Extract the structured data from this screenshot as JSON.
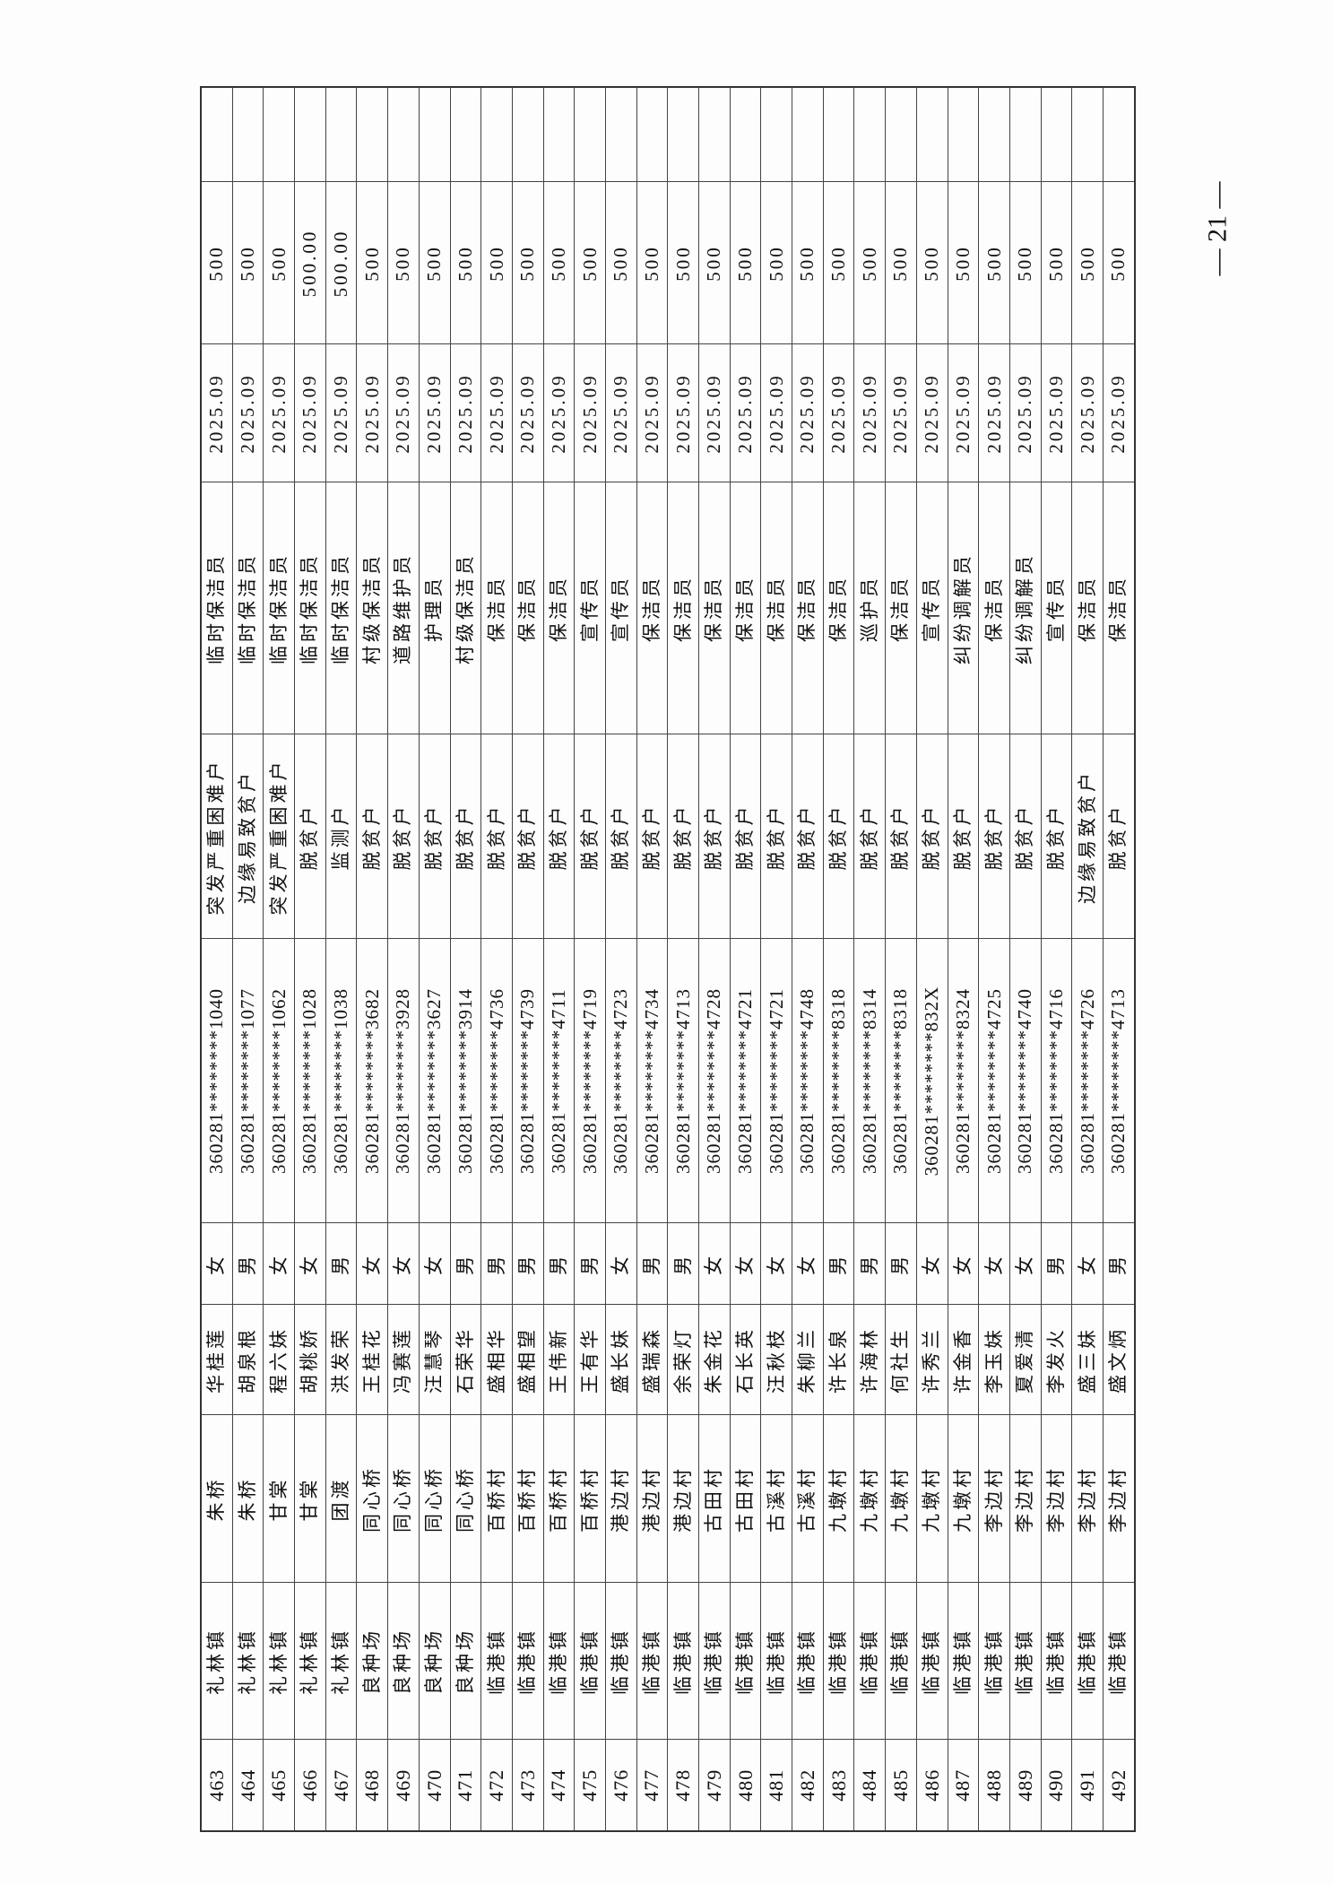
{
  "page_number": "— 21 —",
  "rows": [
    {
      "no": "463",
      "town": "礼林镇",
      "village": "朱桥",
      "name": "华桂莲",
      "gender": "女",
      "id": "360281********1040",
      "category": "突发严重困难户",
      "job": "临时保洁员",
      "date": "2025.09",
      "amount": "500",
      "remark": ""
    },
    {
      "no": "464",
      "town": "礼林镇",
      "village": "朱桥",
      "name": "胡泉根",
      "gender": "男",
      "id": "360281********1077",
      "category": "边缘易致贫户",
      "job": "临时保洁员",
      "date": "2025.09",
      "amount": "500",
      "remark": ""
    },
    {
      "no": "465",
      "town": "礼林镇",
      "village": "甘棠",
      "name": "程六妹",
      "gender": "女",
      "id": "360281********1062",
      "category": "突发严重困难户",
      "job": "临时保洁员",
      "date": "2025.09",
      "amount": "500",
      "remark": ""
    },
    {
      "no": "466",
      "town": "礼林镇",
      "village": "甘棠",
      "name": "胡桃娇",
      "gender": "女",
      "id": "360281********1028",
      "category": "脱贫户",
      "job": "临时保洁员",
      "date": "2025.09",
      "amount": "500.00",
      "remark": ""
    },
    {
      "no": "467",
      "town": "礼林镇",
      "village": "团渡",
      "name": "洪发荣",
      "gender": "男",
      "id": "360281********1038",
      "category": "监测户",
      "job": "临时保洁员",
      "date": "2025.09",
      "amount": "500.00",
      "remark": ""
    },
    {
      "no": "468",
      "town": "良种场",
      "village": "同心桥",
      "name": "王桂花",
      "gender": "女",
      "id": "360281********3682",
      "category": "脱贫户",
      "job": "村级保洁员",
      "date": "2025.09",
      "amount": "500",
      "remark": ""
    },
    {
      "no": "469",
      "town": "良种场",
      "village": "同心桥",
      "name": "冯赛莲",
      "gender": "女",
      "id": "360281********3928",
      "category": "脱贫户",
      "job": "道路维护员",
      "date": "2025.09",
      "amount": "500",
      "remark": ""
    },
    {
      "no": "470",
      "town": "良种场",
      "village": "同心桥",
      "name": "汪慧琴",
      "gender": "女",
      "id": "360281********3627",
      "category": "脱贫户",
      "job": "护理员",
      "date": "2025.09",
      "amount": "500",
      "remark": ""
    },
    {
      "no": "471",
      "town": "良种场",
      "village": "同心桥",
      "name": "石荣华",
      "gender": "男",
      "id": "360281********3914",
      "category": "脱贫户",
      "job": "村级保洁员",
      "date": "2025.09",
      "amount": "500",
      "remark": ""
    },
    {
      "no": "472",
      "town": "临港镇",
      "village": "百桥村",
      "name": "盛相华",
      "gender": "男",
      "id": "360281********4736",
      "category": "脱贫户",
      "job": "保洁员",
      "date": "2025.09",
      "amount": "500",
      "remark": ""
    },
    {
      "no": "473",
      "town": "临港镇",
      "village": "百桥村",
      "name": "盛相望",
      "gender": "男",
      "id": "360281********4739",
      "category": "脱贫户",
      "job": "保洁员",
      "date": "2025.09",
      "amount": "500",
      "remark": ""
    },
    {
      "no": "474",
      "town": "临港镇",
      "village": "百桥村",
      "name": "王伟新",
      "gender": "男",
      "id": "360281********4711",
      "category": "脱贫户",
      "job": "保洁员",
      "date": "2025.09",
      "amount": "500",
      "remark": ""
    },
    {
      "no": "475",
      "town": "临港镇",
      "village": "百桥村",
      "name": "王有华",
      "gender": "男",
      "id": "360281********4719",
      "category": "脱贫户",
      "job": "宣传员",
      "date": "2025.09",
      "amount": "500",
      "remark": ""
    },
    {
      "no": "476",
      "town": "临港镇",
      "village": "港边村",
      "name": "盛长妹",
      "gender": "女",
      "id": "360281********4723",
      "category": "脱贫户",
      "job": "宣传员",
      "date": "2025.09",
      "amount": "500",
      "remark": ""
    },
    {
      "no": "477",
      "town": "临港镇",
      "village": "港边村",
      "name": "盛瑞森",
      "gender": "男",
      "id": "360281********4734",
      "category": "脱贫户",
      "job": "保洁员",
      "date": "2025.09",
      "amount": "500",
      "remark": ""
    },
    {
      "no": "478",
      "town": "临港镇",
      "village": "港边村",
      "name": "余荣灯",
      "gender": "男",
      "id": "360281********4713",
      "category": "脱贫户",
      "job": "保洁员",
      "date": "2025.09",
      "amount": "500",
      "remark": ""
    },
    {
      "no": "479",
      "town": "临港镇",
      "village": "古田村",
      "name": "朱金花",
      "gender": "女",
      "id": "360281********4728",
      "category": "脱贫户",
      "job": "保洁员",
      "date": "2025.09",
      "amount": "500",
      "remark": ""
    },
    {
      "no": "480",
      "town": "临港镇",
      "village": "古田村",
      "name": "石长英",
      "gender": "女",
      "id": "360281********4721",
      "category": "脱贫户",
      "job": "保洁员",
      "date": "2025.09",
      "amount": "500",
      "remark": ""
    },
    {
      "no": "481",
      "town": "临港镇",
      "village": "古溪村",
      "name": "汪秋枝",
      "gender": "女",
      "id": "360281********4721",
      "category": "脱贫户",
      "job": "保洁员",
      "date": "2025.09",
      "amount": "500",
      "remark": ""
    },
    {
      "no": "482",
      "town": "临港镇",
      "village": "古溪村",
      "name": "朱柳兰",
      "gender": "女",
      "id": "360281********4748",
      "category": "脱贫户",
      "job": "保洁员",
      "date": "2025.09",
      "amount": "500",
      "remark": ""
    },
    {
      "no": "483",
      "town": "临港镇",
      "village": "九墩村",
      "name": "许长泉",
      "gender": "男",
      "id": "360281********8318",
      "category": "脱贫户",
      "job": "保洁员",
      "date": "2025.09",
      "amount": "500",
      "remark": ""
    },
    {
      "no": "484",
      "town": "临港镇",
      "village": "九墩村",
      "name": "许海林",
      "gender": "男",
      "id": "360281********8314",
      "category": "脱贫户",
      "job": "巡护员",
      "date": "2025.09",
      "amount": "500",
      "remark": ""
    },
    {
      "no": "485",
      "town": "临港镇",
      "village": "九墩村",
      "name": "何社生",
      "gender": "男",
      "id": "360281********8318",
      "category": "脱贫户",
      "job": "保洁员",
      "date": "2025.09",
      "amount": "500",
      "remark": ""
    },
    {
      "no": "486",
      "town": "临港镇",
      "village": "九墩村",
      "name": "许秀兰",
      "gender": "女",
      "id": "360281********832X",
      "category": "脱贫户",
      "job": "宣传员",
      "date": "2025.09",
      "amount": "500",
      "remark": ""
    },
    {
      "no": "487",
      "town": "临港镇",
      "village": "九墩村",
      "name": "许金香",
      "gender": "女",
      "id": "360281********8324",
      "category": "脱贫户",
      "job": "纠纷调解员",
      "date": "2025.09",
      "amount": "500",
      "remark": ""
    },
    {
      "no": "488",
      "town": "临港镇",
      "village": "李边村",
      "name": "李玉妹",
      "gender": "女",
      "id": "360281********4725",
      "category": "脱贫户",
      "job": "保洁员",
      "date": "2025.09",
      "amount": "500",
      "remark": ""
    },
    {
      "no": "489",
      "town": "临港镇",
      "village": "李边村",
      "name": "夏爱清",
      "gender": "女",
      "id": "360281********4740",
      "category": "脱贫户",
      "job": "纠纷调解员",
      "date": "2025.09",
      "amount": "500",
      "remark": ""
    },
    {
      "no": "490",
      "town": "临港镇",
      "village": "李边村",
      "name": "李发火",
      "gender": "男",
      "id": "360281********4716",
      "category": "脱贫户",
      "job": "宣传员",
      "date": "2025.09",
      "amount": "500",
      "remark": ""
    },
    {
      "no": "491",
      "town": "临港镇",
      "village": "李边村",
      "name": "盛三妹",
      "gender": "女",
      "id": "360281********4726",
      "category": "边缘易致贫户",
      "job": "保洁员",
      "date": "2025.09",
      "amount": "500",
      "remark": ""
    },
    {
      "no": "492",
      "town": "临港镇",
      "village": "李边村",
      "name": "盛文炳",
      "gender": "男",
      "id": "360281********4713",
      "category": "脱贫户",
      "job": "保洁员",
      "date": "2025.09",
      "amount": "500",
      "remark": ""
    }
  ]
}
